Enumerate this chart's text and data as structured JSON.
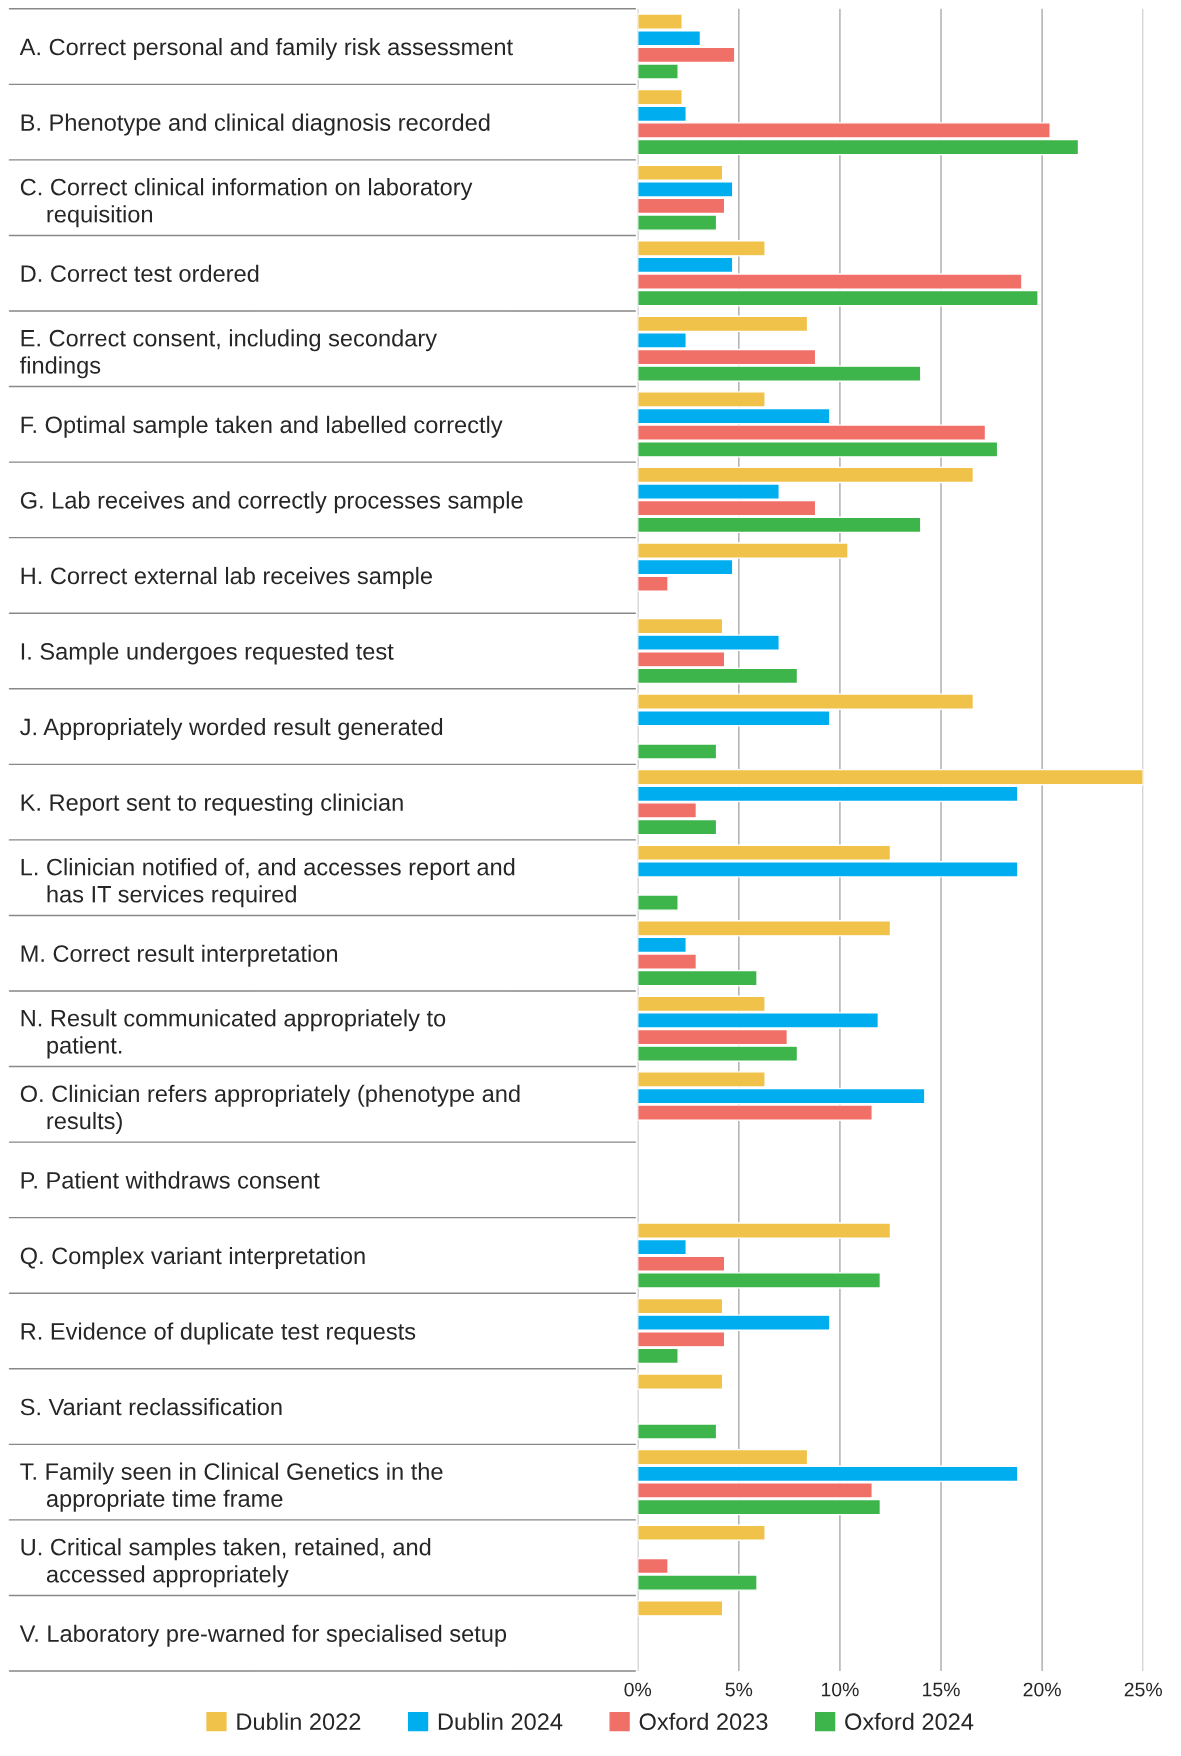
{
  "chart_data": {
    "type": "bar",
    "orientation": "horizontal",
    "categories": [
      "A. Correct personal and family risk assessment",
      "B. Phenotype and clinical diagnosis recorded",
      "C. Correct clinical information on laboratory\n    requisition",
      "D. Correct test ordered",
      "E. Correct consent, including secondary\nfindings",
      "F. Optimal sample taken and labelled correctly",
      "G. Lab receives and correctly processes sample",
      "H. Correct external lab receives sample",
      "I. Sample undergoes requested test",
      "J. Appropriately worded result generated",
      "K. Report sent to requesting clinician",
      "L. Clinician notified of, and accesses report and\n    has IT services required",
      "M. Correct result interpretation",
      "N. Result communicated appropriately to\n    patient.",
      "O. Clinician refers appropriately (phenotype and\n    results)",
      "P. Patient withdraws consent",
      "Q. Complex variant interpretation",
      "R. Evidence of duplicate test requests",
      "S. Variant reclassification",
      "T. Family seen in Clinical Genetics in the\n    appropriate time frame",
      "U. Critical samples taken, retained, and\n    accessed appropriately",
      "V. Laboratory pre-warned for specialised setup"
    ],
    "series": [
      {
        "name": "Dublin 2022",
        "color": "#f0c24a",
        "values": [
          2.2,
          2.2,
          4.2,
          6.3,
          8.4,
          6.3,
          16.6,
          10.4,
          4.2,
          16.6,
          25.0,
          12.5,
          12.5,
          6.3,
          6.3,
          null,
          12.5,
          4.2,
          4.2,
          8.4,
          6.3,
          4.2
        ]
      },
      {
        "name": "Dublin 2024",
        "color": "#00aeef",
        "values": [
          3.1,
          2.4,
          4.7,
          4.7,
          2.4,
          9.5,
          7.0,
          4.7,
          7.0,
          9.5,
          18.8,
          18.8,
          2.4,
          11.9,
          14.2,
          null,
          2.4,
          9.5,
          null,
          18.8,
          null,
          null
        ]
      },
      {
        "name": "Oxford 2023",
        "color": "#f07068",
        "values": [
          4.8,
          20.4,
          4.3,
          19.0,
          8.8,
          17.2,
          8.8,
          1.5,
          4.3,
          null,
          2.9,
          null,
          2.9,
          7.4,
          11.6,
          null,
          4.3,
          4.3,
          null,
          11.6,
          1.5,
          null
        ]
      },
      {
        "name": "Oxford 2024",
        "color": "#3db54a",
        "values": [
          2.0,
          21.8,
          3.9,
          19.8,
          14.0,
          17.8,
          14.0,
          null,
          7.9,
          3.9,
          3.9,
          2.0,
          5.9,
          7.9,
          null,
          null,
          12.0,
          2.0,
          3.9,
          12.0,
          5.9,
          null
        ]
      }
    ],
    "xlim": [
      0,
      25
    ],
    "xticks": [
      {
        "value": 0,
        "label": "0%"
      },
      {
        "value": 5,
        "label": "5%"
      },
      {
        "value": 10,
        "label": "10%"
      },
      {
        "value": 15,
        "label": "15%"
      },
      {
        "value": 20,
        "label": "20%"
      },
      {
        "value": 25,
        "label": "25%"
      }
    ],
    "grid": "x",
    "legend": "bottom"
  }
}
